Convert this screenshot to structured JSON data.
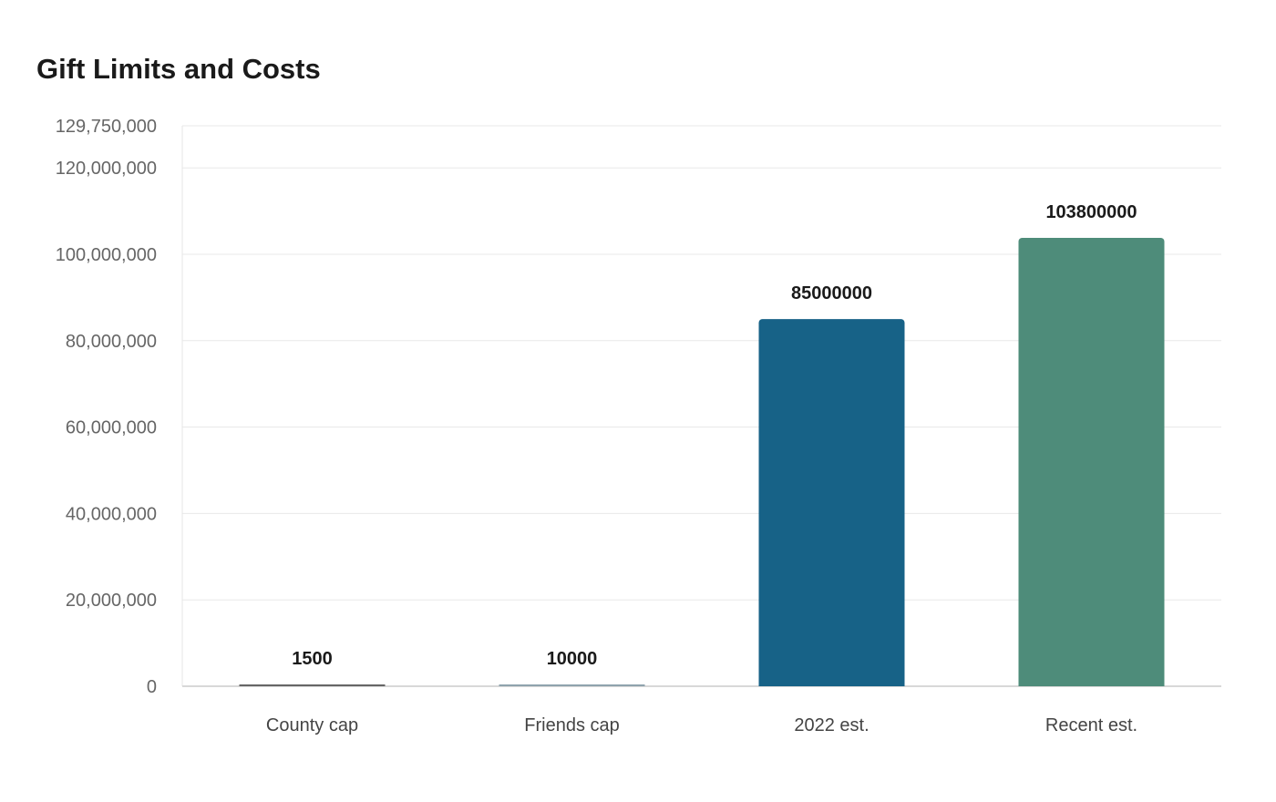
{
  "chart_data": {
    "type": "bar",
    "title": "Gift Limits and Costs",
    "xlabel": "",
    "ylabel": "",
    "categories": [
      "County cap",
      "Friends cap",
      "2022 est.",
      "Recent est."
    ],
    "values": [
      1500,
      10000,
      85000000,
      103800000
    ],
    "data_labels": [
      "1500",
      "10000",
      "85000000",
      "103800000"
    ],
    "colors": [
      "#666666",
      "#8fa3ad",
      "#176287",
      "#4e8c7a"
    ],
    "ylim": [
      0,
      129750000
    ],
    "yticks": [
      0,
      20000000,
      40000000,
      60000000,
      80000000,
      100000000,
      120000000,
      129750000
    ],
    "ytick_labels": [
      "0",
      "20,000,000",
      "40,000,000",
      "60,000,000",
      "80,000,000",
      "100,000,000",
      "120,000,000",
      "129,750,000"
    ],
    "grid": true,
    "legend": "none"
  }
}
